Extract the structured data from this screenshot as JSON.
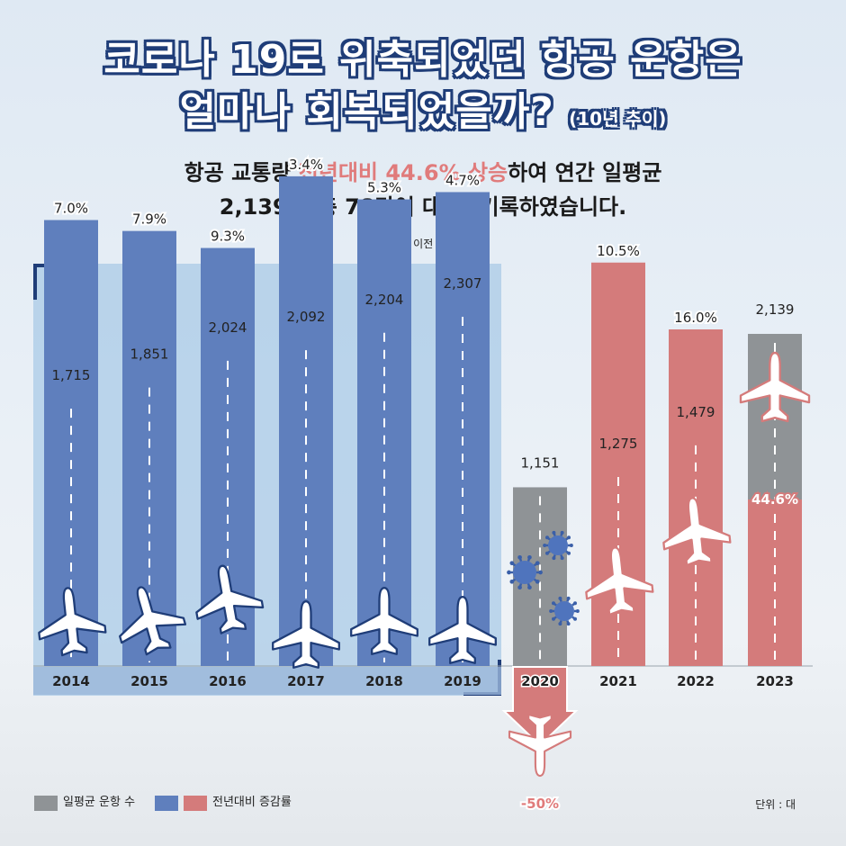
{
  "title": {
    "line1": "코로나 19로 위축되었던 항공 운항은",
    "line2": "얼마나 회복되었을까?",
    "note": "(10년 추이)"
  },
  "subtitle": {
    "line1_a": "항공 교통량 ",
    "line1_hl": "전년대비 44.6% 상승",
    "line1_b": "하여 연간 일평균",
    "line2": "2,139대(총 78만여 대)를 기록하였습니다."
  },
  "precovid_label": "코로나19 이전 항공 추이",
  "legend": {
    "gray": "일평균 운항 수",
    "growth": "전년대비 증감률"
  },
  "unit": "단위 : 대",
  "colors": {
    "gray": "#8f9396",
    "blue": "#5f7fbd",
    "red": "#d47b7b",
    "navy": "#1f3d78",
    "highlight": "#e07b7b"
  },
  "chart_data": {
    "type": "bar",
    "categories": [
      "2014",
      "2015",
      "2016",
      "2017",
      "2018",
      "2019",
      "2020",
      "2021",
      "2022",
      "2023"
    ],
    "series": [
      {
        "name": "일평균 운항 수",
        "values": [
          1715,
          1851,
          2024,
          2092,
          2204,
          2307,
          1151,
          1275,
          1479,
          2139
        ],
        "labels": [
          "1,715",
          "1,851",
          "2,024",
          "2,092",
          "2,204",
          "2,307",
          "1,151",
          "1,275",
          "1,479",
          "2,139"
        ]
      },
      {
        "name": "전년대비 증감률",
        "values": [
          7.0,
          7.9,
          9.3,
          3.4,
          5.3,
          4.7,
          -50,
          10.5,
          16.0,
          44.6
        ],
        "labels": [
          "7.0%",
          "7.9%",
          "9.3%",
          "3.4%",
          "5.3%",
          "4.7%",
          "-50%",
          "10.5%",
          "16.0%",
          "44.6%"
        ]
      }
    ]
  }
}
